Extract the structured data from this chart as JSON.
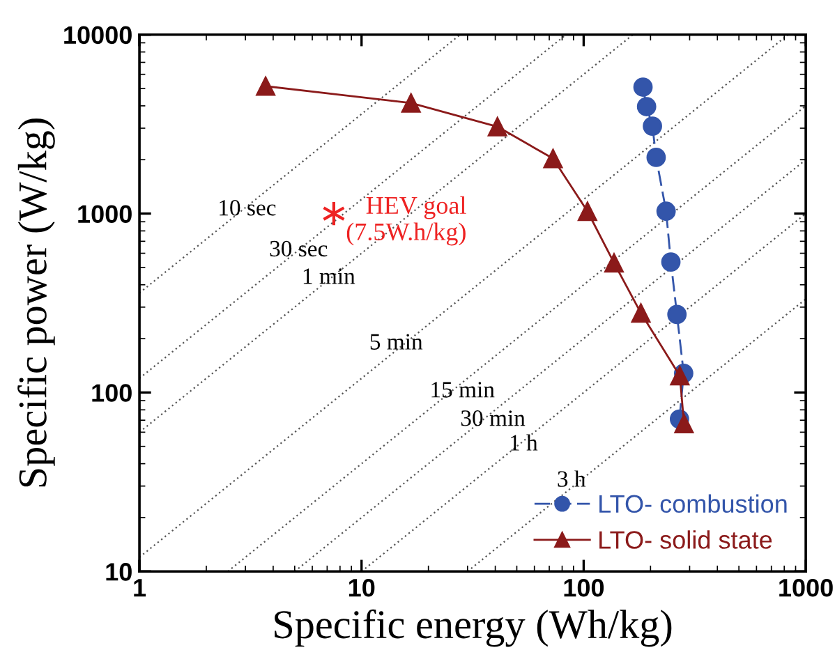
{
  "chart_data": {
    "type": "line",
    "xlabel": "Specific energy (Wh/kg)",
    "ylabel": "Specific power (W/kg)",
    "log": "xy",
    "xlim": [
      1,
      1000
    ],
    "ylim": [
      10,
      10000
    ],
    "xticks": [
      1,
      10,
      100,
      1000
    ],
    "yticks": [
      10,
      100,
      1000,
      10000
    ],
    "legend": "bottom right",
    "grid": false,
    "series": [
      {
        "name": "LTO- combustion",
        "color": "#3355aa",
        "marker": "circle",
        "line_style": "dashed",
        "x": [
          185,
          192,
          204,
          212,
          235,
          247,
          263,
          282,
          270
        ],
        "values": [
          5090,
          3960,
          3080,
          2060,
          1030,
          536,
          273,
          128,
          71
        ]
      },
      {
        "name": "LTO- solid state",
        "color": "#8b1a1a",
        "marker": "triangle",
        "line_style": "solid",
        "x": [
          3.7,
          16.7,
          40.9,
          72.8,
          104,
          137,
          181,
          271,
          283
        ],
        "values": [
          5150,
          4150,
          3060,
          2030,
          1030,
          530,
          278,
          124,
          67
        ]
      },
      {
        "type": "scatter",
        "color": "#ee2222",
        "marker": "cross",
        "x": [
          7.5
        ],
        "values": [
          1000
        ]
      },
      {
        "color": "#555555",
        "marker": "none",
        "line_style": "dotted",
        "x": [
          1,
          27.8
        ],
        "values": [
          360,
          10000
        ]
      },
      {
        "color": "#555555",
        "marker": "none",
        "line_style": "dotted",
        "x": [
          1,
          83.3
        ],
        "values": [
          120,
          10000
        ]
      },
      {
        "color": "#555555",
        "marker": "none",
        "line_style": "dotted",
        "x": [
          1,
          166.7
        ],
        "values": [
          60,
          10000
        ]
      },
      {
        "color": "#555555",
        "marker": "none",
        "line_style": "dotted",
        "x": [
          1,
          833
        ],
        "values": [
          12,
          10000
        ]
      },
      {
        "color": "#555555",
        "marker": "none",
        "line_style": "dotted",
        "x": [
          2.5,
          1000
        ],
        "values": [
          10,
          4000
        ]
      },
      {
        "color": "#555555",
        "marker": "none",
        "line_style": "dotted",
        "x": [
          5,
          1000
        ],
        "values": [
          10,
          2000
        ]
      },
      {
        "color": "#555555",
        "marker": "none",
        "line_style": "dotted",
        "x": [
          10,
          1000
        ],
        "values": [
          10,
          1000
        ]
      },
      {
        "color": "#555555",
        "marker": "none",
        "line_style": "dotted",
        "x": [
          30,
          1000
        ],
        "values": [
          10,
          333
        ]
      }
    ],
    "annotations": [
      {
        "text": "HEV goal\n(7.5W.h/kg)",
        "x": 8.5,
        "y": 1000
      },
      {
        "text": "10 sec",
        "x": 3.05,
        "y": 1050
      },
      {
        "text": "30 sec",
        "x": 5.2,
        "y": 620
      },
      {
        "text": "1 min",
        "x": 7.1,
        "y": 435
      },
      {
        "text": "5 min",
        "x": 14.3,
        "y": 187
      },
      {
        "text": "15 min",
        "x": 28.4,
        "y": 101
      },
      {
        "text": "30 min",
        "x": 39,
        "y": 70
      },
      {
        "text": "1 h",
        "x": 53.5,
        "y": 51
      },
      {
        "text": "3 h",
        "x": 88,
        "y": 32
      }
    ]
  }
}
